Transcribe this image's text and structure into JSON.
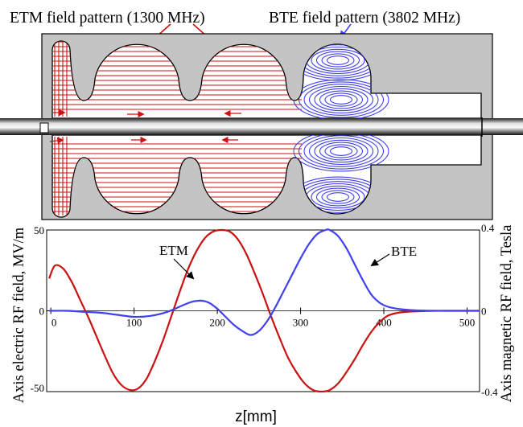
{
  "header": {
    "etm_label": "ETM field pattern (1300 MHz)",
    "bte_label": "BTE field pattern (3802 MHz)"
  },
  "chart_data": {
    "type": "line",
    "xlabel": "z[mm]",
    "ylabel_left": "Axis electric RF field, MV/m",
    "ylabel_right": "Axis magnetic RF field, Tesla",
    "xlim": [
      -5,
      515
    ],
    "ylim_left": [
      -50,
      50
    ],
    "ylim_right": [
      -0.4,
      0.4
    ],
    "x_ticks": [
      "0",
      "100",
      "200",
      "300",
      "400",
      "500"
    ],
    "y_ticks_left": [
      "50",
      "0",
      "-50"
    ],
    "y_ticks_right": [
      "0.4",
      "0",
      "-0.4"
    ],
    "grid": false,
    "series": [
      {
        "name": "ETM",
        "axis": "left",
        "color": "#cc1111",
        "x": [
          -2,
          5,
          15,
          25,
          35,
          45,
          55,
          65,
          75,
          85,
          95,
          105,
          115,
          125,
          135,
          145,
          155,
          165,
          175,
          185,
          195,
          205,
          215,
          225,
          235,
          245,
          255,
          265,
          275,
          285,
          295,
          305,
          315,
          325,
          335,
          345,
          355,
          365,
          375,
          385,
          395,
          405,
          420,
          440,
          460,
          480,
          500,
          515
        ],
        "y": [
          20,
          28,
          26,
          18,
          7,
          -4,
          -16,
          -28,
          -39,
          -46,
          -49,
          -48,
          -42,
          -31,
          -18,
          -3,
          12,
          26,
          37,
          45,
          49,
          50,
          49,
          44,
          35,
          23,
          10,
          -4,
          -17,
          -29,
          -38,
          -45,
          -49,
          -50,
          -49,
          -45,
          -38,
          -30,
          -21,
          -13,
          -7,
          -3,
          -1,
          -0.3,
          0,
          0,
          0,
          0
        ]
      },
      {
        "name": "BTE",
        "axis": "right",
        "color": "#4040ee",
        "x": [
          -2,
          20,
          40,
          60,
          80,
          100,
          120,
          140,
          160,
          170,
          180,
          190,
          200,
          210,
          220,
          230,
          240,
          250,
          260,
          270,
          280,
          290,
          300,
          310,
          320,
          330,
          335,
          345,
          355,
          365,
          375,
          385,
          395,
          405,
          420,
          440,
          460,
          480,
          500,
          515
        ],
        "y": [
          0,
          0,
          -0.005,
          -0.01,
          -0.02,
          -0.03,
          -0.025,
          -0.005,
          0.03,
          0.045,
          0.05,
          0.04,
          0.01,
          -0.03,
          -0.07,
          -0.1,
          -0.12,
          -0.1,
          -0.05,
          0.02,
          0.1,
          0.18,
          0.26,
          0.33,
          0.38,
          0.4,
          0.4,
          0.37,
          0.31,
          0.23,
          0.15,
          0.08,
          0.04,
          0.02,
          0.008,
          0.002,
          0,
          0,
          0,
          0
        ]
      }
    ],
    "annotations": [
      "ETM",
      "BTE"
    ]
  }
}
